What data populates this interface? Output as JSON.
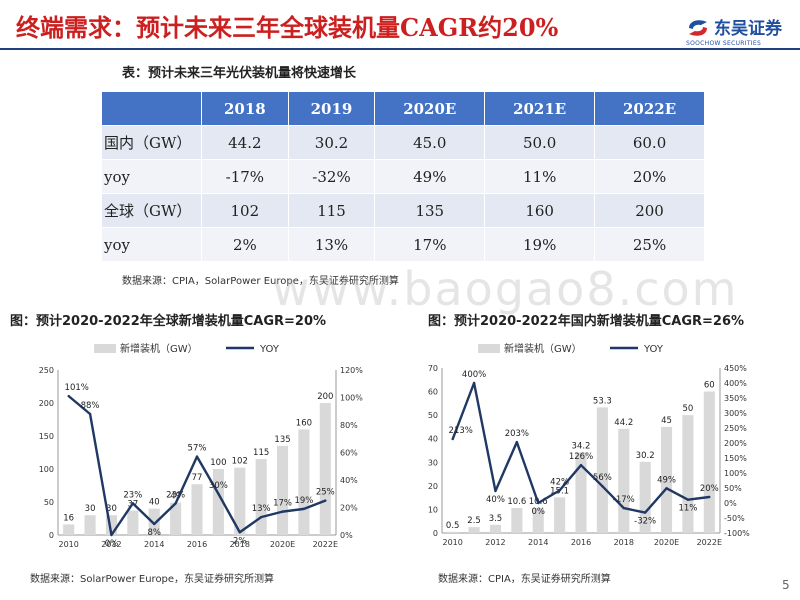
{
  "page": {
    "title": "终端需求：预计未来三年全球装机量CAGR约20%",
    "page_number": "5",
    "watermark": "www.baogao8.com"
  },
  "logo": {
    "name_cn": "东吴证券",
    "name_en": "SOOCHOW SECURITIES",
    "color": "#1f4f9f"
  },
  "table": {
    "caption": "表：预计未来三年光伏装机量将快速增长",
    "headers": [
      "",
      "2018",
      "2019",
      "2020E",
      "2021E",
      "2022E"
    ],
    "rows": [
      [
        "国内（GW）",
        "44.2",
        "30.2",
        "45.0",
        "50.0",
        "60.0"
      ],
      [
        "yoy",
        "-17%",
        "-32%",
        "49%",
        "11%",
        "20%"
      ],
      [
        "全球（GW）",
        "102",
        "115",
        "135",
        "160",
        "200"
      ],
      [
        "yoy",
        "2%",
        "13%",
        "17%",
        "19%",
        "25%"
      ]
    ],
    "source": "数据来源：CPIA，SolarPower Europe，东吴证券研究所测算"
  },
  "chart_data": [
    {
      "type": "bar",
      "title": "图：预计2020-2022年全球新增装机量CAGR=20%",
      "source": "数据来源：SolarPower Europe，东吴证券研究所测算",
      "bar_legend": "新增装机（GW）",
      "line_legend": "YOY",
      "categories": [
        "2010",
        "2011",
        "2012",
        "2013",
        "2014",
        "2015",
        "2016",
        "2017",
        "2018",
        "2019",
        "2020E",
        "2021E",
        "2022E"
      ],
      "x_tick_labels": [
        "2010",
        "",
        "2012",
        "",
        "2014",
        "",
        "2016",
        "",
        "2018",
        "",
        "2020E",
        "",
        "2022E"
      ],
      "bar_values": [
        16,
        30,
        30,
        37,
        40,
        49,
        77,
        100,
        102,
        115,
        135,
        160,
        200
      ],
      "bar_labels": [
        "16",
        "30",
        "30",
        "37",
        "40",
        "49",
        "77",
        "100",
        "102",
        "115",
        "135",
        "160",
        "200"
      ],
      "yoy_values": [
        101,
        88,
        0,
        23,
        8,
        23,
        57,
        30,
        2,
        13,
        17,
        19,
        25
      ],
      "yoy_labels": [
        "101%",
        "88%",
        "0%",
        "23%",
        "8%",
        "23%",
        "57%",
        "30%",
        "2%",
        "13%",
        "17%",
        "19%",
        "25%"
      ],
      "left_axis": {
        "min": 0,
        "max": 250,
        "ticks": [
          0,
          50,
          100,
          150,
          200,
          250
        ]
      },
      "right_axis": {
        "min": 0,
        "max": 120,
        "ticks": [
          0,
          20,
          40,
          60,
          80,
          100,
          120
        ],
        "suffix": "%"
      },
      "bar_color": "#d9d9d9",
      "line_color": "#1f3864"
    },
    {
      "type": "bar",
      "title": "图：预计2020-2022年国内新增装机量CAGR=26%",
      "source": "数据来源：CPIA，东吴证券研究所测算",
      "bar_legend": "新增装机（GW）",
      "line_legend": "YOY",
      "categories": [
        "2010",
        "2011",
        "2012",
        "2013",
        "2014",
        "2015",
        "2016",
        "2017",
        "2018",
        "2019",
        "2020E",
        "2021E",
        "2022E"
      ],
      "x_tick_labels": [
        "2010",
        "",
        "2012",
        "",
        "2014",
        "",
        "2016",
        "",
        "2018",
        "",
        "2020E",
        "",
        "2022E"
      ],
      "bar_values": [
        0.5,
        2.5,
        3.5,
        10.6,
        10.6,
        15.1,
        34.2,
        53.3,
        44.2,
        30.2,
        45,
        50,
        60
      ],
      "bar_labels": [
        "0.5",
        "2.5",
        "3.5",
        "10.6",
        "10.6",
        "15.1",
        "34.2",
        "53.3",
        "44.2",
        "30.2",
        "45",
        "50",
        "60"
      ],
      "yoy_values": [
        213,
        400,
        40,
        203,
        0,
        42,
        126,
        56,
        -17,
        -32,
        49,
        11,
        20
      ],
      "yoy_labels": [
        "213%",
        "400%",
        "40%",
        "203%",
        "0%",
        "42%",
        "126%",
        "56%",
        "-17%",
        "-32%",
        "49%",
        "11%",
        "20%"
      ],
      "left_axis": {
        "min": 0,
        "max": 70,
        "ticks": [
          0,
          10,
          20,
          30,
          40,
          50,
          60,
          70
        ]
      },
      "right_axis": {
        "min": -100,
        "max": 450,
        "ticks": [
          -100,
          -50,
          0,
          50,
          100,
          150,
          200,
          250,
          300,
          350,
          400,
          450
        ],
        "suffix": "%"
      },
      "bar_color": "#d9d9d9",
      "line_color": "#1f3864"
    }
  ]
}
